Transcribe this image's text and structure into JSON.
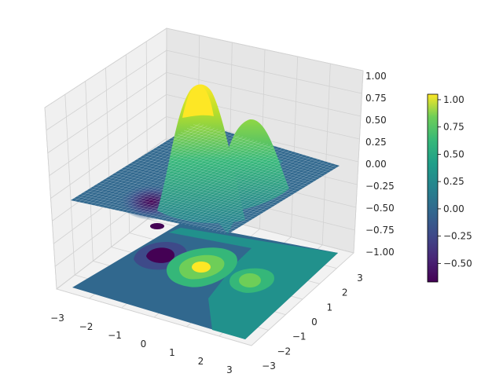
{
  "chart_data": {
    "type": "surface3d",
    "title": "",
    "x_range": [
      -3,
      3
    ],
    "y_range": [
      -3,
      3
    ],
    "z_range": [
      -1,
      1
    ],
    "x_ticks": [
      "−3",
      "−2",
      "−1",
      "0",
      "1",
      "2",
      "3"
    ],
    "y_ticks": [
      "−3",
      "−2",
      "−1",
      "0",
      "1",
      "2",
      "3"
    ],
    "z_ticks": [
      "−1.00",
      "−0.75",
      "−0.50",
      "−0.25",
      "0.00",
      "0.25",
      "0.50",
      "0.75",
      "1.00"
    ],
    "colormap": "viridis",
    "colorbar": {
      "range": [
        -0.67,
        1.05
      ],
      "ticks": [
        "−0.50",
        "−0.25",
        "0.00",
        "0.25",
        "0.50",
        "0.75",
        "1.00"
      ],
      "tick_values": [
        -0.5,
        -0.25,
        0,
        0.25,
        0.5,
        0.75,
        1.0
      ]
    },
    "surface_features": [
      {
        "kind": "peak",
        "x": 0.4,
        "y": 1.0,
        "z": 1.05
      },
      {
        "kind": "peak",
        "x": 1.6,
        "y": 0.2,
        "z": 0.6
      },
      {
        "kind": "trough",
        "x": -1.2,
        "y": -0.2,
        "z": -0.67
      }
    ],
    "projection": "filled contour on plane z = -1",
    "grid": true,
    "legend": "colorbar right"
  }
}
